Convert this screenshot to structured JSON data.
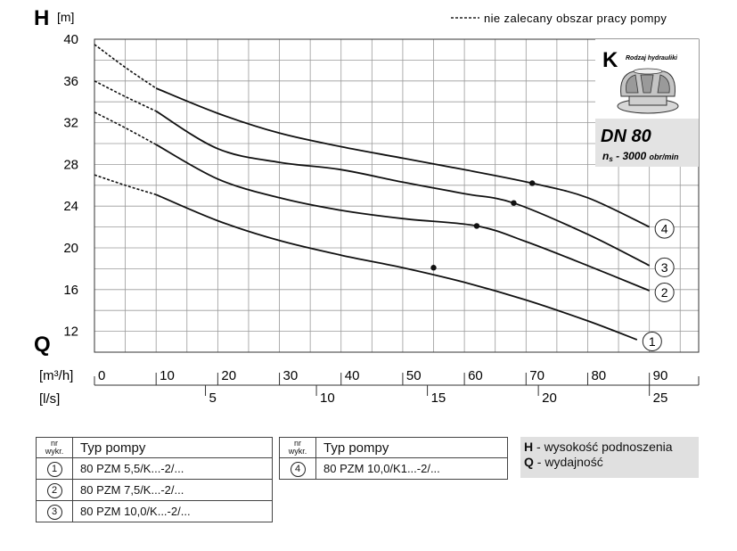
{
  "chart_data": {
    "type": "line",
    "y_axis_symbol": "H",
    "y_unit": "[m]",
    "x_axis_symbol": "Q",
    "flow_unit_primary": "[m³/h]",
    "flow_unit_secondary": "[l/s]",
    "ylim": [
      10,
      40
    ],
    "xlim": [
      0,
      98
    ],
    "y_ticks": [
      12,
      16,
      20,
      24,
      28,
      32,
      36,
      40
    ],
    "x_ticks_m3h": [
      0,
      10,
      20,
      30,
      40,
      50,
      60,
      70,
      80,
      90
    ],
    "x_ticks_ls": [
      5,
      10,
      15,
      20,
      25
    ],
    "grid": true,
    "dashed_legend": "nie zalecany obszar pracy pompy",
    "series": [
      {
        "id": "1",
        "label": "1",
        "dashed_until": 10,
        "points": [
          [
            0,
            27
          ],
          [
            5,
            26
          ],
          [
            10,
            25.1
          ],
          [
            20,
            22.6
          ],
          [
            30,
            20.7
          ],
          [
            40,
            19.3
          ],
          [
            50,
            18.1
          ],
          [
            60,
            16.7
          ],
          [
            70,
            15
          ],
          [
            80,
            13
          ],
          [
            88,
            11.2
          ]
        ],
        "marker": [
          55,
          18.1
        ]
      },
      {
        "id": "2",
        "label": "2",
        "dashed_until": 10,
        "points": [
          [
            0,
            33
          ],
          [
            5,
            31.5
          ],
          [
            10,
            29.9
          ],
          [
            20,
            26.6
          ],
          [
            30,
            24.8
          ],
          [
            40,
            23.6
          ],
          [
            50,
            22.8
          ],
          [
            62,
            22.1
          ],
          [
            70,
            20.6
          ],
          [
            80,
            18.3
          ],
          [
            90,
            15.9
          ]
        ],
        "marker": [
          62,
          22.1
        ]
      },
      {
        "id": "3",
        "label": "3",
        "dashed_until": 10,
        "points": [
          [
            0,
            36
          ],
          [
            5,
            34.5
          ],
          [
            10,
            33.1
          ],
          [
            20,
            29.5
          ],
          [
            30,
            28.2
          ],
          [
            40,
            27.5
          ],
          [
            50,
            26.3
          ],
          [
            60,
            25.2
          ],
          [
            68,
            24.3
          ],
          [
            80,
            21.3
          ],
          [
            90,
            18.3
          ]
        ],
        "marker": [
          68,
          24.3
        ]
      },
      {
        "id": "4",
        "label": "4",
        "dashed_until": 10,
        "points": [
          [
            0,
            39.5
          ],
          [
            5,
            37.3
          ],
          [
            10,
            35.3
          ],
          [
            20,
            32.9
          ],
          [
            30,
            31
          ],
          [
            40,
            29.7
          ],
          [
            50,
            28.6
          ],
          [
            60,
            27.5
          ],
          [
            71,
            26.2
          ],
          [
            80,
            24.8
          ],
          [
            90,
            22
          ]
        ],
        "marker": [
          71,
          26.2
        ]
      }
    ]
  },
  "info_box": {
    "letter": "K",
    "caption": "Rodzaj hydrauliki",
    "dn": "DN 80",
    "ns_symbol": "n",
    "ns_sub": "s",
    "ns_value": " - 3000 ",
    "ns_unit": "obr/min"
  },
  "table1": {
    "col_nr": [
      "nr",
      "wykr."
    ],
    "col_type": "Typ pompy",
    "rows": [
      {
        "nr": "1",
        "type": "80 PZM 5,5/K...-2/..."
      },
      {
        "nr": "2",
        "type": "80 PZM 7,5/K...-2/..."
      },
      {
        "nr": "3",
        "type": "80 PZM 10,0/K...-2/..."
      }
    ]
  },
  "table2": {
    "col_nr": [
      "nr",
      "wykr."
    ],
    "col_type": "Typ pompy",
    "rows": [
      {
        "nr": "4",
        "type": "80 PZM 10,0/K1...-2/..."
      }
    ]
  },
  "legend": {
    "h_symbol": "H",
    "h_text": " - wysokość podnoszenia",
    "q_symbol": "Q",
    "q_text": " - wydajność"
  }
}
